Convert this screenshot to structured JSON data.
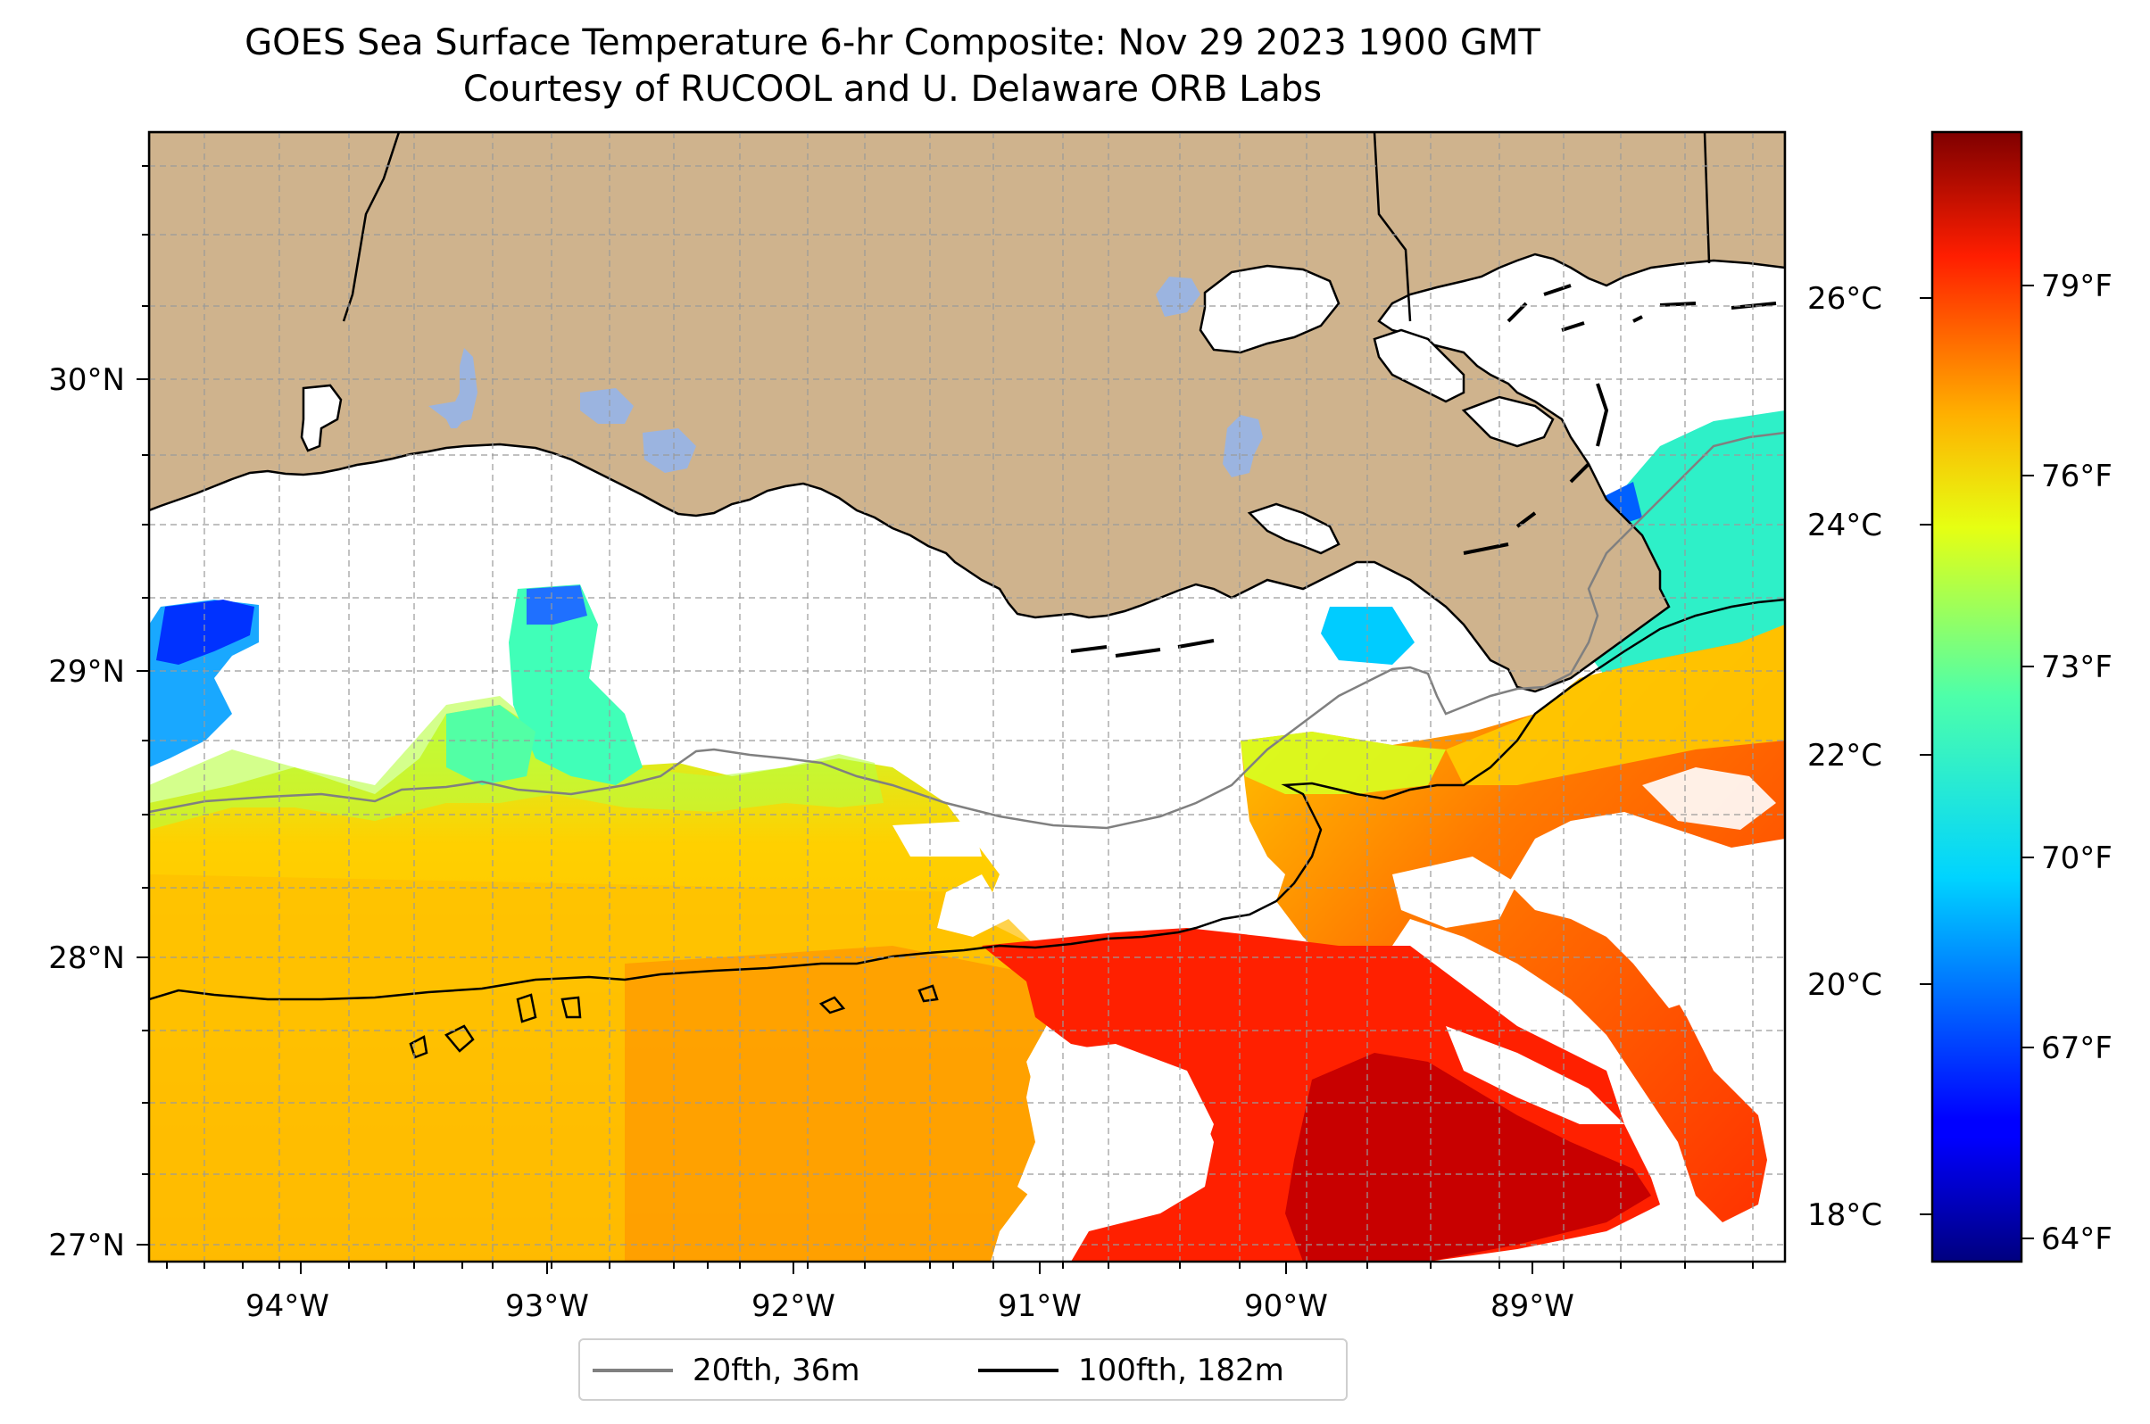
{
  "title": "GOES Sea Surface Temperature 6-hr Composite: Nov 29 2023 1900 GMT",
  "subtitle": "Courtesy of RUCOOL and U. Delaware ORB Labs",
  "map": {
    "lon_range": [
      -94.55,
      -88.25
    ],
    "lat_range": [
      26.95,
      30.85
    ],
    "lon_ticks": [
      {
        "value": -94,
        "label": "94°W"
      },
      {
        "value": -93,
        "label": "93°W"
      },
      {
        "value": -92,
        "label": "92°W"
      },
      {
        "value": -91,
        "label": "91°W"
      },
      {
        "value": -90,
        "label": "90°W"
      },
      {
        "value": -89,
        "label": "89°W"
      }
    ],
    "lat_ticks": [
      {
        "value": 30,
        "label": "30°N"
      },
      {
        "value": 29,
        "label": "29°N"
      },
      {
        "value": 28,
        "label": "28°N"
      },
      {
        "value": 27,
        "label": "27°N"
      }
    ],
    "gridlines": true,
    "land_color": "#cfb38d",
    "water_color": "#9bb4e0",
    "colormap": "jet"
  },
  "colorbar": {
    "celsius_ticks": [
      "26°C",
      "24°C",
      "22°C",
      "20°C",
      "18°C"
    ],
    "fahrenheit_ticks": [
      "79°F",
      "76°F",
      "73°F",
      "70°F",
      "67°F",
      "64°F"
    ]
  },
  "legend": {
    "items": [
      {
        "label": "20fth, 36m",
        "color": "#808080"
      },
      {
        "label": "100fth, 182m",
        "color": "#000000"
      }
    ]
  }
}
